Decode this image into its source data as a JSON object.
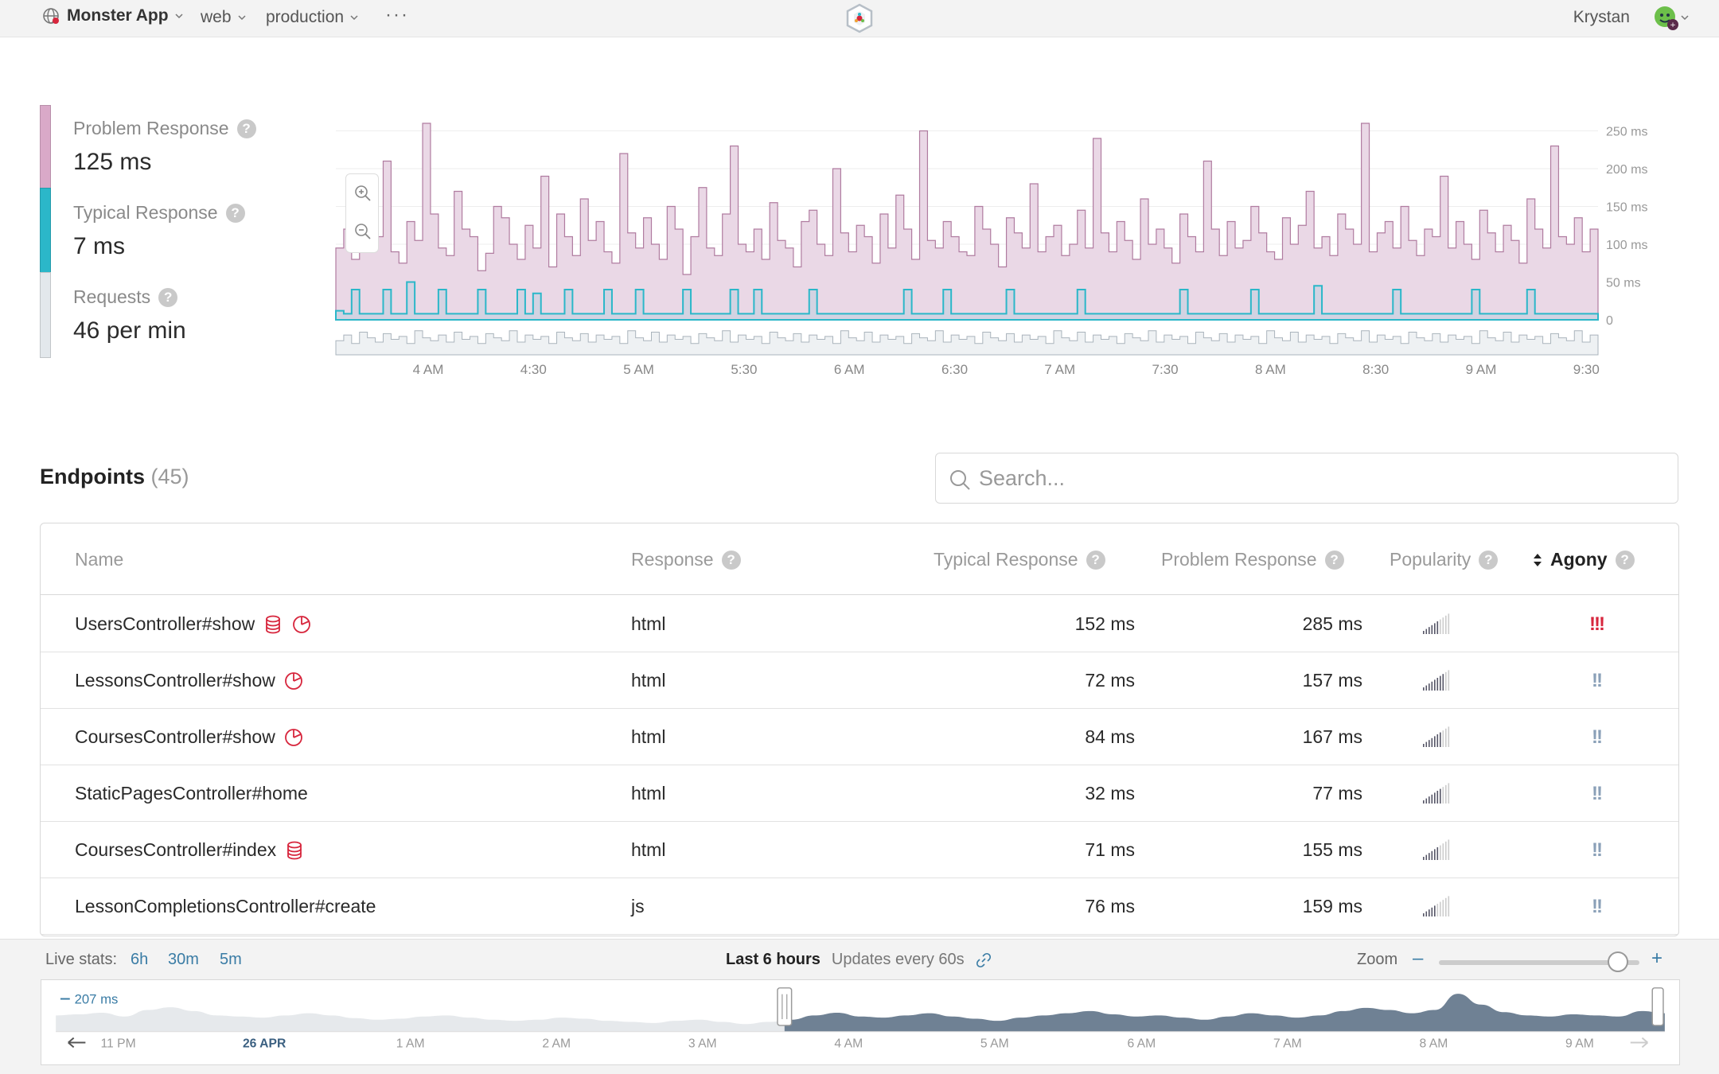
{
  "topbar": {
    "app_name": "Monster App",
    "env_dropdown": "web",
    "stage_dropdown": "production",
    "more": "···",
    "user_name": "Krystan"
  },
  "stats": {
    "problem_label": "Problem Response",
    "problem_value": "125 ms",
    "typical_label": "Typical Response",
    "typical_value": "7 ms",
    "requests_label": "Requests",
    "requests_value": "46 per min",
    "colors": {
      "problem": "#d9a9c8",
      "typical": "#2bb7c9",
      "requests": "#d6dde2"
    }
  },
  "chart_data": {
    "type": "area",
    "ylabel_ticks": [
      "250 ms",
      "200 ms",
      "150 ms",
      "100 ms",
      "50 ms",
      "0"
    ],
    "ylim": [
      0,
      280
    ],
    "x_ticks": [
      "4 AM",
      "4:30",
      "5 AM",
      "5:30",
      "6 AM",
      "6:30",
      "7 AM",
      "7:30",
      "8 AM",
      "8:30",
      "9 AM",
      "9:30"
    ],
    "series": [
      {
        "name": "Problem Response",
        "color": "#d9a9c8"
      },
      {
        "name": "Typical Response",
        "color": "#2bb7c9"
      },
      {
        "name": "Requests",
        "color": "#d6dde2"
      }
    ],
    "problem_values": [
      95,
      120,
      80,
      140,
      160,
      110,
      210,
      90,
      75,
      130,
      105,
      260,
      140,
      95,
      85,
      170,
      120,
      110,
      65,
      88,
      150,
      135,
      100,
      80,
      125,
      95,
      190,
      70,
      140,
      110,
      85,
      160,
      105,
      130,
      90,
      75,
      220,
      115,
      95,
      135,
      100,
      80,
      150,
      120,
      60,
      110,
      175,
      95,
      85,
      140,
      230,
      100,
      90,
      120,
      80,
      155,
      105,
      95,
      70,
      130,
      145,
      100,
      85,
      200,
      115,
      90,
      125,
      110,
      75,
      140,
      95,
      165,
      120,
      80,
      250,
      105,
      95,
      130,
      110,
      90,
      85,
      150,
      120,
      100,
      70,
      135,
      115,
      95,
      180,
      90,
      110,
      125,
      85,
      100,
      145,
      95,
      240,
      115,
      90,
      130,
      105,
      80,
      160,
      100,
      120,
      95,
      75,
      140,
      110,
      90,
      210,
      120,
      85,
      130,
      95,
      105,
      150,
      115,
      90,
      80,
      135,
      100,
      125,
      170,
      95,
      110,
      85,
      140,
      120,
      100,
      260,
      90,
      115,
      130,
      95,
      150,
      105,
      85,
      120,
      110,
      190,
      95,
      130,
      100,
      80,
      145,
      115,
      90,
      125,
      105,
      75,
      160,
      120,
      95,
      230,
      110,
      100,
      135,
      90,
      120
    ],
    "typical_values": [
      12,
      8,
      40,
      8,
      8,
      8,
      40,
      8,
      8,
      50,
      8,
      8,
      8,
      40,
      8,
      8,
      8,
      8,
      40,
      8,
      8,
      8,
      8,
      40,
      8,
      35,
      8,
      8,
      8,
      40,
      8,
      8,
      8,
      8,
      40,
      8,
      8,
      8,
      40,
      8,
      8,
      8,
      8,
      8,
      40,
      8,
      8,
      8,
      8,
      8,
      40,
      8,
      8,
      40,
      8,
      8,
      8,
      8,
      8,
      8,
      40,
      8,
      8,
      8,
      8,
      8,
      8,
      8,
      8,
      8,
      8,
      8,
      40,
      8,
      8,
      8,
      8,
      40,
      8,
      8,
      8,
      8,
      8,
      8,
      8,
      40,
      8,
      8,
      8,
      8,
      8,
      8,
      8,
      8,
      40,
      8,
      8,
      8,
      8,
      8,
      8,
      8,
      8,
      8,
      8,
      8,
      8,
      40,
      8,
      8,
      8,
      8,
      8,
      8,
      8,
      8,
      40,
      8,
      8,
      8,
      8,
      8,
      8,
      8,
      45,
      8,
      8,
      8,
      8,
      8,
      8,
      8,
      8,
      8,
      40,
      8,
      8,
      8,
      8,
      8,
      8,
      8,
      8,
      8,
      40,
      8,
      8,
      8,
      8,
      8,
      8,
      40,
      8,
      8,
      8,
      8,
      8,
      8,
      8,
      8
    ],
    "requests_values": [
      10,
      14,
      8,
      16,
      12,
      9,
      15,
      11,
      13,
      8,
      17,
      12,
      10,
      14,
      9,
      16,
      11,
      13,
      8,
      15,
      12,
      10,
      17,
      9,
      14,
      11,
      13,
      8,
      16,
      12,
      10,
      15,
      9,
      14,
      11,
      13,
      8,
      17,
      12,
      10,
      16,
      9,
      14,
      11,
      13,
      8,
      15,
      12,
      10,
      17,
      9,
      14,
      11,
      13,
      8,
      16,
      12,
      10,
      15,
      9,
      14,
      11,
      13,
      8,
      17,
      12,
      10,
      16,
      9,
      14,
      11,
      13,
      8,
      15,
      12,
      10,
      17,
      9,
      14,
      11,
      13,
      8,
      16,
      12,
      10,
      15,
      9,
      14,
      11,
      13,
      8,
      17,
      12,
      10,
      16,
      9,
      14,
      11,
      13,
      8,
      15,
      12,
      10,
      17,
      9,
      14,
      11,
      13,
      8,
      16,
      12,
      10,
      15,
      9,
      14,
      11,
      13,
      8,
      17,
      12,
      10,
      16,
      9,
      14,
      11,
      13,
      8,
      15,
      12,
      10,
      17,
      9,
      14,
      11,
      13,
      8,
      16,
      12,
      10,
      15,
      9,
      14,
      11,
      13,
      8,
      17,
      12,
      10,
      16,
      9,
      14,
      11,
      13,
      8,
      15,
      12,
      10,
      17,
      9,
      14
    ]
  },
  "endpoints": {
    "title": "Endpoints",
    "count": "(45)",
    "search_placeholder": "Search...",
    "columns": {
      "name": "Name",
      "response": "Response",
      "typical": "Typical Response",
      "problem": "Problem Response",
      "popularity": "Popularity",
      "agony": "Agony"
    },
    "rows": [
      {
        "name": "UsersController#show",
        "response": "html",
        "typical": "152 ms",
        "problem": "285 ms",
        "agony": "!!!",
        "agony_color": "#d7263d",
        "icons": [
          "database-icon",
          "pie-chart-icon"
        ],
        "popularity": 0.6
      },
      {
        "name": "LessonsController#show",
        "response": "html",
        "typical": "72 ms",
        "problem": "157 ms",
        "agony": "!!",
        "agony_color": "#8aa0b8",
        "icons": [
          "pie-chart-icon"
        ],
        "popularity": 0.8
      },
      {
        "name": "CoursesController#show",
        "response": "html",
        "typical": "84 ms",
        "problem": "167 ms",
        "agony": "!!",
        "agony_color": "#8aa0b8",
        "icons": [
          "pie-chart-icon"
        ],
        "popularity": 0.7
      },
      {
        "name": "StaticPagesController#home",
        "response": "html",
        "typical": "32 ms",
        "problem": "77 ms",
        "agony": "!!",
        "agony_color": "#8aa0b8",
        "icons": [],
        "popularity": 0.7
      },
      {
        "name": "CoursesController#index",
        "response": "html",
        "typical": "71 ms",
        "problem": "155 ms",
        "agony": "!!",
        "agony_color": "#8aa0b8",
        "icons": [
          "database-icon"
        ],
        "popularity": 0.6
      },
      {
        "name": "LessonCompletionsController#create",
        "response": "js",
        "typical": "76 ms",
        "problem": "159 ms",
        "agony": "!!",
        "agony_color": "#8aa0b8",
        "icons": [],
        "popularity": 0.5
      }
    ]
  },
  "footer": {
    "live_label": "Live stats:",
    "live_options": [
      "6h",
      "30m",
      "5m"
    ],
    "range_label": "Last 6 hours",
    "updates_label": "Updates every 60s",
    "zoom_label": "Zoom",
    "zoom_minus": "–",
    "zoom_plus": "+",
    "zoom_level": 0.9,
    "overview_max": "207 ms",
    "overview_ticks": [
      "11 PM",
      "26 APR",
      "1 AM",
      "2 AM",
      "3 AM",
      "4 AM",
      "5 AM",
      "6 AM",
      "7 AM",
      "8 AM",
      "9 AM"
    ],
    "overview_values": [
      30,
      32,
      35,
      28,
      40,
      45,
      38,
      30,
      28,
      26,
      30,
      34,
      30,
      25,
      22,
      24,
      28,
      30,
      26,
      22,
      20,
      22,
      26,
      24,
      20,
      18,
      16,
      20,
      22,
      18,
      14,
      18,
      22,
      30,
      35,
      28,
      26,
      30,
      34,
      28,
      24,
      20,
      26,
      30,
      34,
      38,
      32,
      28,
      30,
      26,
      22,
      28,
      34,
      30,
      26,
      30,
      38,
      44,
      40,
      34,
      40,
      70,
      50,
      36,
      30,
      28,
      32,
      30,
      28,
      38,
      34
    ]
  }
}
